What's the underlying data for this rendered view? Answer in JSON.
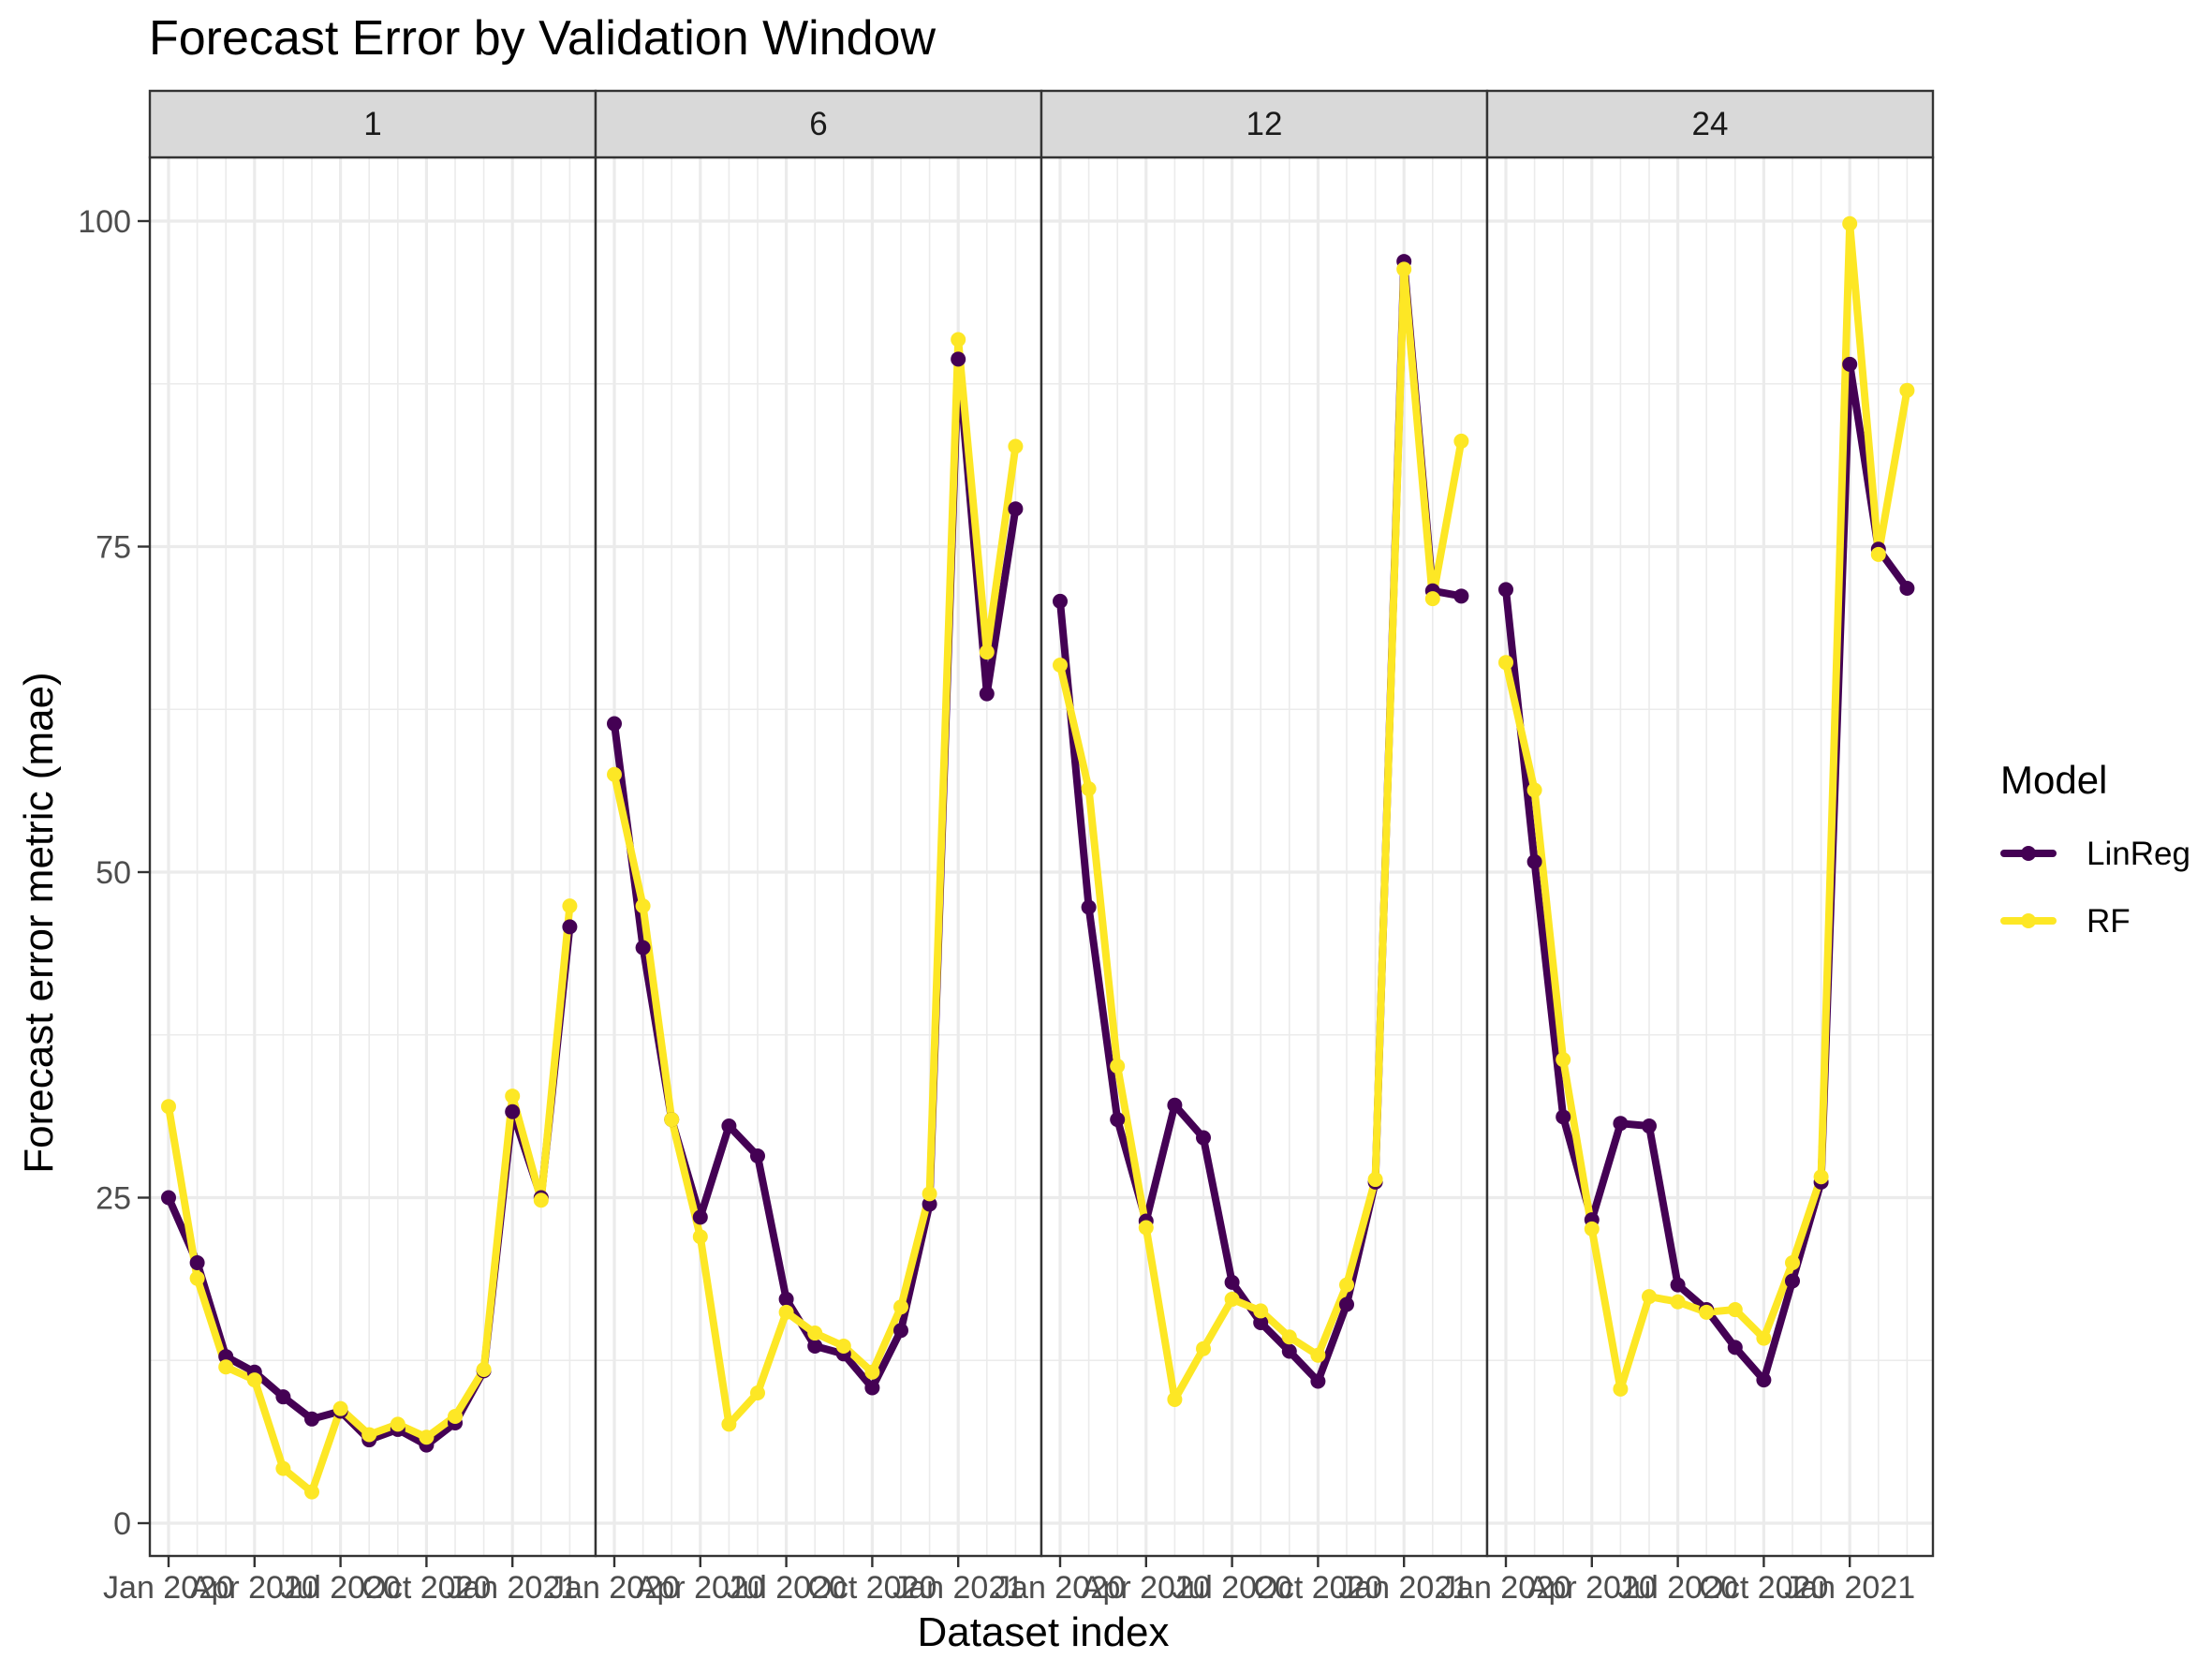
{
  "chart_data": {
    "type": "line",
    "title": "Forecast Error by Validation Window",
    "xlabel": "Dataset index",
    "ylabel": "Forecast error metric (mae)",
    "ylim": [
      0,
      100
    ],
    "yticks": [
      0,
      25,
      50,
      75,
      100
    ],
    "xticks": [
      "Jan 2020",
      "Apr 2020",
      "Jul 2020",
      "Oct 2020",
      "Jan 2021"
    ],
    "x": [
      "2020-01",
      "2020-02",
      "2020-03",
      "2020-04",
      "2020-05",
      "2020-06",
      "2020-07",
      "2020-08",
      "2020-09",
      "2020-10",
      "2020-11",
      "2020-12",
      "2021-01",
      "2021-02",
      "2021-03"
    ],
    "grid": true,
    "legend": {
      "title": "Model",
      "position": "right"
    },
    "colors": {
      "LinReg": "#440154",
      "RF": "#FDE725",
      "strip_bg": "#D9D9D9",
      "grid": "#EBEBEB",
      "border": "#333333"
    },
    "panels": [
      {
        "label": "1",
        "series": [
          {
            "name": "LinReg",
            "values": [
              25.0,
              20.0,
              12.8,
              11.6,
              9.7,
              8.0,
              8.6,
              6.4,
              7.2,
              6.0,
              7.7,
              11.7,
              31.6,
              25.0,
              45.8
            ]
          },
          {
            "name": "RF",
            "values": [
              32.0,
              18.8,
              12.0,
              11.0,
              4.2,
              2.4,
              8.8,
              6.8,
              7.6,
              6.6,
              8.2,
              11.8,
              32.8,
              24.8,
              47.4
            ]
          }
        ]
      },
      {
        "label": "6",
        "series": [
          {
            "name": "LinReg",
            "values": [
              61.4,
              44.2,
              31.0,
              23.5,
              30.5,
              28.2,
              17.2,
              13.6,
              13.0,
              10.4,
              14.8,
              24.5,
              89.4,
              63.7,
              77.9
            ]
          },
          {
            "name": "RF",
            "values": [
              57.5,
              47.4,
              31.0,
              22.0,
              7.6,
              10.0,
              16.2,
              14.6,
              13.6,
              11.6,
              16.6,
              25.3,
              90.9,
              66.9,
              82.7
            ]
          }
        ]
      },
      {
        "label": "12",
        "series": [
          {
            "name": "LinReg",
            "values": [
              70.8,
              47.3,
              31.0,
              23.2,
              32.1,
              29.6,
              18.5,
              15.4,
              13.2,
              10.9,
              16.8,
              26.2,
              96.9,
              71.6,
              71.2
            ]
          },
          {
            "name": "RF",
            "values": [
              65.9,
              56.4,
              35.1,
              22.7,
              9.5,
              13.4,
              17.2,
              16.3,
              14.3,
              12.9,
              18.3,
              26.4,
              96.3,
              71.0,
              83.1
            ]
          }
        ]
      },
      {
        "label": "24",
        "series": [
          {
            "name": "LinReg",
            "values": [
              71.7,
              50.8,
              31.2,
              23.3,
              30.7,
              30.5,
              18.3,
              16.4,
              13.5,
              11.0,
              18.6,
              26.2,
              89.0,
              74.8,
              71.8
            ]
          },
          {
            "name": "RF",
            "values": [
              66.1,
              56.3,
              35.6,
              22.6,
              10.3,
              17.4,
              17.0,
              16.2,
              16.4,
              14.2,
              20.0,
              26.6,
              99.8,
              74.4,
              87.0
            ]
          }
        ]
      }
    ]
  }
}
